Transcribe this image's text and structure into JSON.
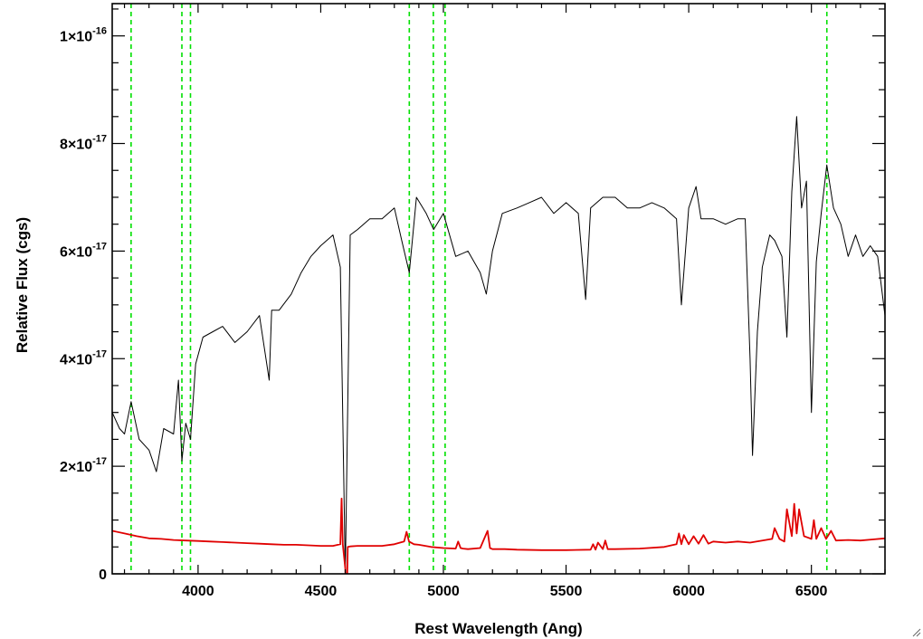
{
  "chart_data": {
    "type": "line",
    "title": "",
    "xlabel": "Rest Wavelength (Ang)",
    "ylabel": "Relative Flux (cgs)",
    "xlim": [
      3650,
      6800
    ],
    "ylim": [
      0,
      1.06e-16
    ],
    "grid": false,
    "legend": "none",
    "x_ticks": [
      {
        "value": 4000,
        "label": "4000"
      },
      {
        "value": 4500,
        "label": "4500"
      },
      {
        "value": 5000,
        "label": "5000"
      },
      {
        "value": 5500,
        "label": "5500"
      },
      {
        "value": 6000,
        "label": "6000"
      },
      {
        "value": 6500,
        "label": "6500"
      }
    ],
    "y_ticks": [
      {
        "value": 0,
        "mantissa": "0",
        "exponent": ""
      },
      {
        "value": 2e-17,
        "mantissa": "2×10",
        "exponent": "-17"
      },
      {
        "value": 4e-17,
        "mantissa": "4×10",
        "exponent": "-17"
      },
      {
        "value": 6e-17,
        "mantissa": "6×10",
        "exponent": "-17"
      },
      {
        "value": 8e-17,
        "mantissa": "8×10",
        "exponent": "-17"
      },
      {
        "value": 1e-16,
        "mantissa": "1×10",
        "exponent": "-16"
      }
    ],
    "vertical_lines": {
      "color": "#00e000",
      "style": "dashed",
      "x": [
        3727,
        3934,
        3969,
        4861,
        4959,
        5007,
        6563
      ]
    },
    "series": [
      {
        "color": "#000000",
        "x": [
          3650,
          3680,
          3700,
          3727,
          3760,
          3800,
          3830,
          3860,
          3900,
          3920,
          3934,
          3950,
          3969,
          3990,
          4020,
          4060,
          4100,
          4150,
          4200,
          4250,
          4290,
          4300,
          4330,
          4380,
          4420,
          4460,
          4500,
          4550,
          4580,
          4600,
          4620,
          4650,
          4700,
          4750,
          4800,
          4830,
          4861,
          4890,
          4930,
          4960,
          5000,
          5050,
          5100,
          5150,
          5175,
          5200,
          5240,
          5300,
          5350,
          5400,
          5450,
          5500,
          5550,
          5580,
          5600,
          5650,
          5700,
          5750,
          5800,
          5850,
          5900,
          5950,
          5970,
          6000,
          6030,
          6050,
          6100,
          6150,
          6200,
          6230,
          6250,
          6260,
          6280,
          6300,
          6330,
          6350,
          6380,
          6400,
          6420,
          6440,
          6460,
          6480,
          6500,
          6520,
          6540,
          6563,
          6590,
          6620,
          6650,
          6680,
          6710,
          6740,
          6770,
          6800
        ],
        "y": [
          3e-17,
          2.7e-17,
          2.6e-17,
          3.2e-17,
          2.5e-17,
          2.3e-17,
          1.9e-17,
          2.7e-17,
          2.6e-17,
          3.6e-17,
          2.1e-17,
          2.8e-17,
          2.5e-17,
          3.9e-17,
          4.4e-17,
          4.5e-17,
          4.6e-17,
          4.3e-17,
          4.5e-17,
          4.8e-17,
          3.6e-17,
          4.9e-17,
          4.9e-17,
          5.2e-17,
          5.6e-17,
          5.9e-17,
          6.1e-17,
          6.3e-17,
          5.7e-17,
          0.0,
          6.3e-17,
          6.4e-17,
          6.6e-17,
          6.6e-17,
          6.8e-17,
          6.2e-17,
          5.6e-17,
          7e-17,
          6.7e-17,
          6.4e-17,
          6.7e-17,
          5.9e-17,
          6e-17,
          5.6e-17,
          5.2e-17,
          6e-17,
          6.7e-17,
          6.8e-17,
          6.9e-17,
          7e-17,
          6.7e-17,
          6.9e-17,
          6.7e-17,
          5.1e-17,
          6.8e-17,
          7e-17,
          7e-17,
          6.8e-17,
          6.8e-17,
          6.9e-17,
          6.8e-17,
          6.6e-17,
          5e-17,
          6.8e-17,
          7.2e-17,
          6.6e-17,
          6.6e-17,
          6.5e-17,
          6.6e-17,
          6.6e-17,
          4e-17,
          2.2e-17,
          4.5e-17,
          5.7e-17,
          6.3e-17,
          6.2e-17,
          5.9e-17,
          4.4e-17,
          7.1e-17,
          8.5e-17,
          6.8e-17,
          7.3e-17,
          3e-17,
          5.8e-17,
          6.7e-17,
          7.6e-17,
          6.8e-17,
          6.5e-17,
          5.9e-17,
          6.3e-17,
          5.9e-17,
          6.1e-17,
          5.9e-17,
          4.8e-17
        ]
      },
      {
        "color": "#e00000",
        "x": [
          3650,
          3700,
          3750,
          3800,
          3850,
          3900,
          3950,
          4000,
          4050,
          4100,
          4150,
          4200,
          4250,
          4300,
          4350,
          4400,
          4450,
          4500,
          4550,
          4580,
          4585,
          4590,
          4600,
          4605,
          4610,
          4620,
          4650,
          4700,
          4750,
          4800,
          4840,
          4850,
          4860,
          4880,
          4900,
          4950,
          5000,
          5050,
          5060,
          5070,
          5080,
          5100,
          5150,
          5180,
          5190,
          5200,
          5250,
          5300,
          5400,
          5500,
          5600,
          5610,
          5620,
          5630,
          5650,
          5660,
          5670,
          5700,
          5800,
          5900,
          5950,
          5960,
          5970,
          5980,
          6000,
          6020,
          6040,
          6060,
          6080,
          6100,
          6150,
          6200,
          6250,
          6300,
          6340,
          6350,
          6370,
          6390,
          6400,
          6420,
          6430,
          6440,
          6450,
          6470,
          6500,
          6510,
          6520,
          6540,
          6560,
          6580,
          6600,
          6650,
          6700,
          6750,
          6800
        ],
        "y": [
          8e-18,
          7.5e-18,
          7e-18,
          6.6e-18,
          6.5e-18,
          6.3e-18,
          6.2e-18,
          6.1e-18,
          6e-18,
          5.9e-18,
          5.8e-18,
          5.7e-18,
          5.6e-18,
          5.5e-18,
          5.4e-18,
          5.4e-18,
          5.3e-18,
          5.2e-18,
          5.2e-18,
          5.5e-18,
          1.4e-17,
          5.5e-18,
          1e-18,
          -8e-18,
          5e-18,
          5.1e-18,
          5.2e-18,
          5.2e-18,
          5.2e-18,
          5.5e-18,
          6e-18,
          7.8e-18,
          6e-18,
          5.5e-18,
          5.4e-18,
          5e-18,
          4.8e-18,
          4.7e-18,
          6e-18,
          4.8e-18,
          4.7e-18,
          4.6e-18,
          4.8e-18,
          8e-18,
          4.8e-18,
          4.6e-18,
          4.6e-18,
          4.5e-18,
          4.4e-18,
          4.4e-18,
          4.5e-18,
          5.5e-18,
          4.5e-18,
          5.8e-18,
          4.6e-18,
          6.2e-18,
          4.6e-18,
          4.6e-18,
          4.7e-18,
          5e-18,
          5.5e-18,
          7.5e-18,
          5.5e-18,
          7.2e-18,
          5.5e-18,
          7e-18,
          5.6e-18,
          7.2e-18,
          5.6e-18,
          6e-18,
          5.8e-18,
          6e-18,
          5.8e-18,
          6.2e-18,
          6.5e-18,
          8.5e-18,
          6.5e-18,
          6e-18,
          1.2e-17,
          7e-18,
          1.3e-17,
          7.5e-18,
          1.2e-17,
          7e-18,
          6.5e-18,
          1e-17,
          6.5e-18,
          8.5e-18,
          6.5e-18,
          8e-18,
          6.2e-18,
          6.3e-18,
          6.2e-18,
          6.4e-18,
          6.6e-18
        ]
      }
    ]
  }
}
